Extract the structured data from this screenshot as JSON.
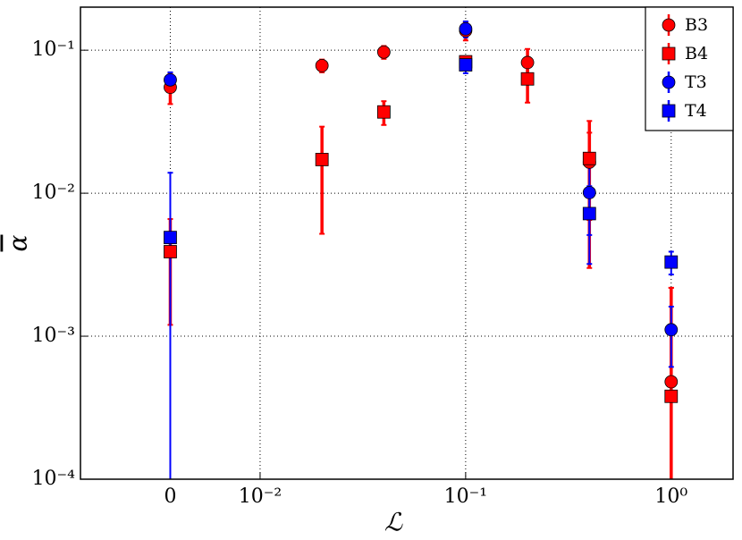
{
  "chart_data": {
    "type": "errorbar",
    "xlabel": "ℒ",
    "ylabel": "α",
    "xscale": "symlog",
    "yscale": "log",
    "grid": true,
    "legend": "upper right",
    "xlim": [
      -0.01,
      2
    ],
    "xticks": [
      0,
      {
        "value": 0.01,
        "label": "10⁻²"
      },
      {
        "value": 0.1,
        "label": "10⁻¹"
      },
      {
        "value": 1,
        "label": "10⁰"
      }
    ],
    "ylim": [
      0.0001,
      0.2
    ],
    "yticks": [
      {
        "value": 0.0001,
        "label": "10⁻⁴"
      },
      {
        "value": 0.001,
        "label": "10⁻³"
      },
      {
        "value": 0.01,
        "label": "10⁻²"
      },
      {
        "value": 0.1,
        "label": "10⁻¹"
      }
    ],
    "series": [
      {
        "name": "B3",
        "color": "#ff0000",
        "marker": "circle",
        "x": [
          0,
          0.02,
          0.04,
          0.1,
          0.2,
          0.4,
          1
        ],
        "values": [
          0.055,
          0.078,
          0.097,
          0.137,
          0.082,
          0.0165,
          0.00048
        ],
        "errors": [
          0.013,
          0.008,
          0.01,
          0.02,
          0.02,
          0.01,
          0.0017
        ]
      },
      {
        "name": "B4",
        "color": "#ff0000",
        "marker": "square",
        "x": [
          0,
          0.02,
          0.04,
          0.1,
          0.2,
          0.4,
          1
        ],
        "values": [
          0.0039,
          0.0172,
          0.037,
          0.083,
          0.063,
          0.0175,
          0.00038
        ],
        "errors": [
          0.0027,
          0.012,
          0.007,
          0.005,
          0.02,
          0.0145,
          0.0018
        ]
      },
      {
        "name": "T3",
        "color": "#0000ff",
        "marker": "circle",
        "x": [
          0,
          0.1,
          0.4,
          1
        ],
        "values": [
          0.062,
          0.141,
          0.0101,
          0.00111
        ],
        "errors": [
          0.008,
          0.018,
          0.005,
          0.0005
        ]
      },
      {
        "name": "T4",
        "color": "#0000ff",
        "marker": "square",
        "x": [
          0,
          0.1,
          0.4,
          1
        ],
        "values": [
          0.0049,
          0.079,
          0.0072,
          0.0033
        ],
        "errors": [
          0.009,
          0.01,
          0.004,
          0.0006
        ]
      }
    ]
  }
}
